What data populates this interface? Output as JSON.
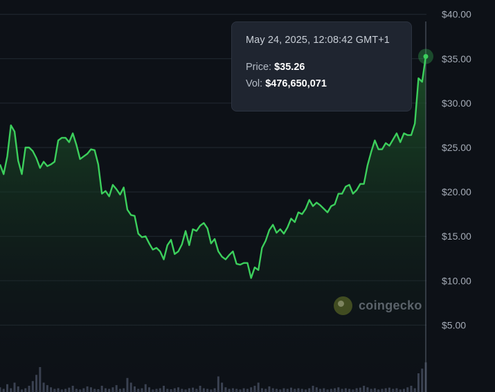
{
  "chart_data": {
    "type": "area",
    "y_axis": {
      "position": "right",
      "ticks": [
        "$5.00",
        "$10.00",
        "$15.00",
        "$20.00",
        "$25.00",
        "$30.00",
        "$35.00",
        "$40.00"
      ],
      "ylim": [
        0,
        40
      ]
    },
    "grid": true,
    "price": [
      23.1,
      22.0,
      24.0,
      27.5,
      26.8,
      23.5,
      22.0,
      25.0,
      25.0,
      24.6,
      23.8,
      22.7,
      23.4,
      22.9,
      23.1,
      23.4,
      25.8,
      26.1,
      26.1,
      25.6,
      26.6,
      25.3,
      23.7,
      24.0,
      24.3,
      24.8,
      24.7,
      23.1,
      19.8,
      20.1,
      19.5,
      20.8,
      20.3,
      19.7,
      20.5,
      18.0,
      17.4,
      17.3,
      15.3,
      14.9,
      15.0,
      14.2,
      13.5,
      13.7,
      13.3,
      12.4,
      14.0,
      14.6,
      13.0,
      13.3,
      14.1,
      15.6,
      14.0,
      15.8,
      15.6,
      16.2,
      16.5,
      15.9,
      14.2,
      14.7,
      13.3,
      12.7,
      12.4,
      12.9,
      13.3,
      11.9,
      11.8,
      12.0,
      12.0,
      10.3,
      11.5,
      11.2,
      13.7,
      14.5,
      15.7,
      16.3,
      15.4,
      15.8,
      15.3,
      16.0,
      17.0,
      16.6,
      17.7,
      17.5,
      18.1,
      19.1,
      18.4,
      18.8,
      18.5,
      18.1,
      17.7,
      18.4,
      18.6,
      19.8,
      19.8,
      20.6,
      20.8,
      19.8,
      20.2,
      20.9,
      20.9,
      23.0,
      24.5,
      25.8,
      24.8,
      24.8,
      25.5,
      25.2,
      25.9,
      26.6,
      25.6,
      26.6,
      26.4,
      26.4,
      27.7,
      32.8,
      32.4,
      35.26
    ],
    "volume_relative": [
      0.15,
      0.1,
      0.25,
      0.12,
      0.3,
      0.18,
      0.08,
      0.12,
      0.2,
      0.35,
      0.55,
      0.8,
      0.3,
      0.22,
      0.15,
      0.1,
      0.12,
      0.08,
      0.1,
      0.14,
      0.2,
      0.1,
      0.08,
      0.12,
      0.18,
      0.15,
      0.1,
      0.09,
      0.2,
      0.12,
      0.1,
      0.15,
      0.22,
      0.1,
      0.12,
      0.45,
      0.3,
      0.18,
      0.1,
      0.12,
      0.25,
      0.15,
      0.08,
      0.1,
      0.12,
      0.2,
      0.1,
      0.09,
      0.12,
      0.15,
      0.1,
      0.08,
      0.12,
      0.14,
      0.1,
      0.2,
      0.12,
      0.1,
      0.08,
      0.12,
      0.5,
      0.3,
      0.15,
      0.1,
      0.12,
      0.1,
      0.08,
      0.12,
      0.1,
      0.15,
      0.2,
      0.3,
      0.12,
      0.1,
      0.18,
      0.12,
      0.1,
      0.08,
      0.12,
      0.1,
      0.14,
      0.1,
      0.12,
      0.1,
      0.08,
      0.12,
      0.2,
      0.15,
      0.1,
      0.12,
      0.08,
      0.1,
      0.12,
      0.15,
      0.1,
      0.12,
      0.1,
      0.08,
      0.12,
      0.14,
      0.2,
      0.15,
      0.1,
      0.12,
      0.08,
      0.1,
      0.12,
      0.14,
      0.1,
      0.12,
      0.08,
      0.1,
      0.15,
      0.2,
      0.12,
      0.6,
      0.75,
      0.95
    ],
    "last_point": {
      "date": "May 24, 2025, 12:08:42 GMT+1",
      "price": 35.26,
      "volume": 476650071
    }
  },
  "tooltip": {
    "date": "May 24, 2025, 12:08:42 GMT+1",
    "price_label": "Price:",
    "price_value": "$35.26",
    "vol_label": "Vol:",
    "vol_value": "$476,650,071"
  },
  "watermark": {
    "icon": "coingecko-logo-icon",
    "text": "coingecko"
  },
  "colors": {
    "line": "#3ccf5c",
    "area_top": "#1e5a2a",
    "background": "#0d1117",
    "grid": "#232a33",
    "volume_bar": "#3b4252",
    "crosshair": "#5b6472",
    "axis_text": "#a4abb6"
  }
}
